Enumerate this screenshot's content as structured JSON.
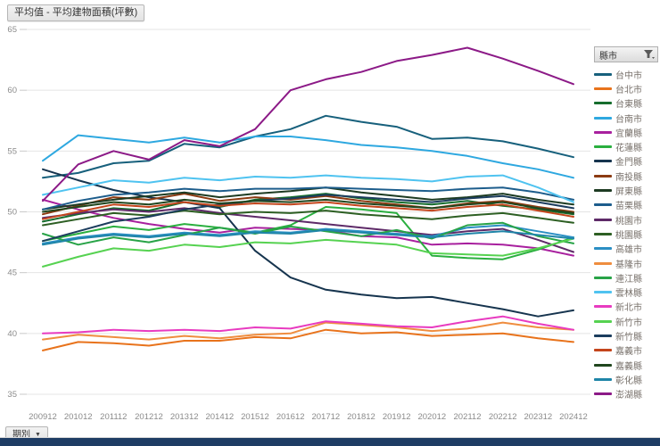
{
  "title": "平均值 - 平均建物面積(坪數)",
  "legend": {
    "header": "縣市",
    "filter_icon": "funnel-icon"
  },
  "period_filter": {
    "label": "期別",
    "caret": "▼"
  },
  "colors": {
    "grid": "#e4e4e4",
    "axis_text": "#8b8b8b",
    "bottom_bar": "#1e3c64"
  },
  "chart_data": {
    "type": "line",
    "title": "平均值 - 平均建物面積(坪數)",
    "ylabel": "",
    "xlabel": "",
    "ylim": [
      35,
      65
    ],
    "yticks": [
      35,
      40,
      45,
      50,
      55,
      60,
      65
    ],
    "grid": true,
    "legend_position": "right",
    "x": [
      "200912",
      "201012",
      "201112",
      "201212",
      "201312",
      "201412",
      "201512",
      "201612",
      "201712",
      "201812",
      "201912",
      "202012",
      "202112",
      "202212",
      "202312",
      "202412"
    ],
    "series": [
      {
        "name": "台中市",
        "color": "#17607c",
        "values": [
          52.8,
          53.2,
          54.0,
          54.2,
          55.6,
          55.3,
          56.2,
          56.8,
          57.9,
          57.4,
          57.0,
          56.0,
          56.1,
          55.8,
          55.2,
          54.5
        ]
      },
      {
        "name": "台北市",
        "color": "#e8731c",
        "values": [
          38.6,
          39.3,
          39.2,
          39.0,
          39.4,
          39.4,
          39.7,
          39.6,
          40.3,
          40.0,
          40.1,
          39.8,
          39.9,
          40.0,
          39.6,
          39.3
        ]
      },
      {
        "name": "台東縣",
        "color": "#166d2d",
        "values": [
          49.2,
          49.8,
          50.3,
          50.1,
          50.8,
          50.4,
          51.0,
          51.2,
          51.5,
          51.1,
          50.8,
          50.6,
          50.9,
          50.5,
          50.2,
          49.8
        ]
      },
      {
        "name": "台南市",
        "color": "#2ea8e0",
        "values": [
          54.2,
          56.3,
          56.0,
          55.7,
          56.1,
          55.7,
          56.2,
          56.2,
          55.9,
          55.5,
          55.3,
          55.0,
          54.6,
          54.0,
          53.5,
          52.8
        ]
      },
      {
        "name": "宜蘭縣",
        "color": "#a8209e",
        "values": [
          51.0,
          50.2,
          49.5,
          49.0,
          48.6,
          48.3,
          48.7,
          48.6,
          48.5,
          48.0,
          47.9,
          47.3,
          47.4,
          47.3,
          47.0,
          46.4
        ]
      },
      {
        "name": "花蓮縣",
        "color": "#2aaf3f",
        "values": [
          47.6,
          48.2,
          48.8,
          48.5,
          49.0,
          48.7,
          48.3,
          48.9,
          50.4,
          50.2,
          49.9,
          46.4,
          46.2,
          46.1,
          46.9,
          47.9
        ]
      },
      {
        "name": "金門縣",
        "color": "#16344e",
        "values": [
          53.5,
          52.6,
          51.8,
          51.2,
          50.8,
          50.3,
          46.8,
          44.6,
          43.6,
          43.2,
          42.9,
          43.0,
          42.5,
          42.0,
          41.4,
          41.9
        ]
      },
      {
        "name": "南投縣",
        "color": "#8c3b12",
        "values": [
          49.8,
          50.5,
          51.2,
          51.0,
          51.5,
          50.9,
          51.2,
          51.0,
          51.3,
          50.9,
          50.6,
          50.3,
          50.7,
          50.9,
          50.4,
          50.0
        ]
      },
      {
        "name": "屏東縣",
        "color": "#1d3b22",
        "values": [
          50.2,
          50.6,
          51.0,
          51.3,
          51.6,
          51.2,
          51.5,
          51.7,
          52.0,
          51.6,
          51.3,
          51.0,
          51.2,
          51.5,
          51.0,
          50.6
        ]
      },
      {
        "name": "苗栗縣",
        "color": "#1d5d8c",
        "values": [
          50.2,
          50.9,
          51.4,
          51.6,
          51.9,
          51.7,
          51.9,
          51.9,
          52.0,
          51.9,
          51.8,
          51.7,
          51.9,
          52.0,
          51.6,
          51.0
        ]
      },
      {
        "name": "桃園市",
        "color": "#5e2a68",
        "values": [
          49.5,
          49.9,
          50.2,
          50.0,
          50.3,
          49.9,
          49.6,
          49.3,
          49.0,
          48.7,
          48.4,
          48.1,
          48.4,
          48.6,
          47.7,
          46.7
        ]
      },
      {
        "name": "桃園縣",
        "color": "#2d5f23",
        "values": [
          48.9,
          49.4,
          49.9,
          49.7,
          50.1,
          49.8,
          50.0,
          49.9,
          50.1,
          49.8,
          49.6,
          49.4,
          49.7,
          49.9,
          49.5,
          49.1
        ]
      },
      {
        "name": "高雄市",
        "color": "#2b8fc4",
        "values": [
          47.4,
          47.9,
          48.2,
          48.0,
          48.3,
          48.1,
          48.4,
          48.3,
          48.6,
          48.4,
          48.2,
          48.0,
          48.7,
          48.9,
          48.4,
          47.9
        ]
      },
      {
        "name": "基隆市",
        "color": "#ef8d3f",
        "values": [
          39.5,
          39.9,
          39.7,
          39.5,
          39.8,
          39.6,
          39.9,
          40.0,
          40.9,
          40.7,
          40.5,
          40.2,
          40.4,
          40.9,
          40.5,
          40.3
        ]
      },
      {
        "name": "連江縣",
        "color": "#28a347",
        "values": [
          48.2,
          47.3,
          47.9,
          47.5,
          48.1,
          48.7,
          48.2,
          48.8,
          48.4,
          48.0,
          48.5,
          47.8,
          48.9,
          49.1,
          48.0,
          47.4
        ]
      },
      {
        "name": "雲林縣",
        "color": "#4fc3f0",
        "values": [
          51.4,
          52.0,
          52.6,
          52.4,
          52.8,
          52.6,
          52.9,
          52.8,
          53.0,
          52.8,
          52.7,
          52.5,
          52.9,
          53.0,
          52.0,
          50.8
        ]
      },
      {
        "name": "新北市",
        "color": "#e83bc0",
        "values": [
          40.0,
          40.1,
          40.3,
          40.2,
          40.3,
          40.2,
          40.5,
          40.4,
          41.0,
          40.8,
          40.6,
          40.5,
          41.0,
          41.4,
          40.8,
          40.3
        ]
      },
      {
        "name": "新竹市",
        "color": "#56d251",
        "values": [
          45.5,
          46.3,
          47.0,
          46.8,
          47.3,
          47.1,
          47.5,
          47.4,
          47.7,
          47.5,
          47.3,
          46.6,
          46.5,
          46.4,
          47.0,
          47.8
        ]
      },
      {
        "name": "新竹縣",
        "color": "#1c3d5e",
        "values": [
          47.6,
          48.4,
          49.2,
          49.6,
          50.2,
          50.6,
          50.9,
          51.1,
          51.4,
          51.2,
          51.0,
          50.8,
          51.1,
          51.3,
          50.8,
          50.3
        ]
      },
      {
        "name": "嘉義市",
        "color": "#c4451c",
        "values": [
          49.4,
          50.0,
          50.6,
          50.4,
          50.8,
          50.5,
          50.7,
          50.6,
          50.8,
          50.5,
          50.3,
          50.1,
          50.4,
          50.6,
          50.1,
          49.6
        ]
      },
      {
        "name": "嘉義縣",
        "color": "#20461e",
        "values": [
          50.0,
          50.4,
          50.8,
          50.6,
          51.0,
          50.7,
          50.9,
          50.8,
          51.0,
          50.7,
          50.5,
          50.3,
          50.6,
          50.8,
          50.3,
          49.9
        ]
      },
      {
        "name": "彰化縣",
        "color": "#1f85a8",
        "values": [
          47.3,
          47.8,
          48.1,
          47.9,
          48.2,
          48.0,
          48.3,
          48.2,
          48.5,
          48.3,
          48.1,
          47.9,
          48.2,
          48.4,
          48.1,
          47.8
        ]
      },
      {
        "name": "澎湖縣",
        "color": "#8c1a87",
        "values": [
          50.9,
          53.9,
          55.0,
          54.3,
          55.9,
          55.4,
          56.8,
          60.0,
          60.9,
          61.5,
          62.4,
          62.9,
          63.5,
          62.6,
          61.6,
          60.5
        ]
      }
    ]
  }
}
